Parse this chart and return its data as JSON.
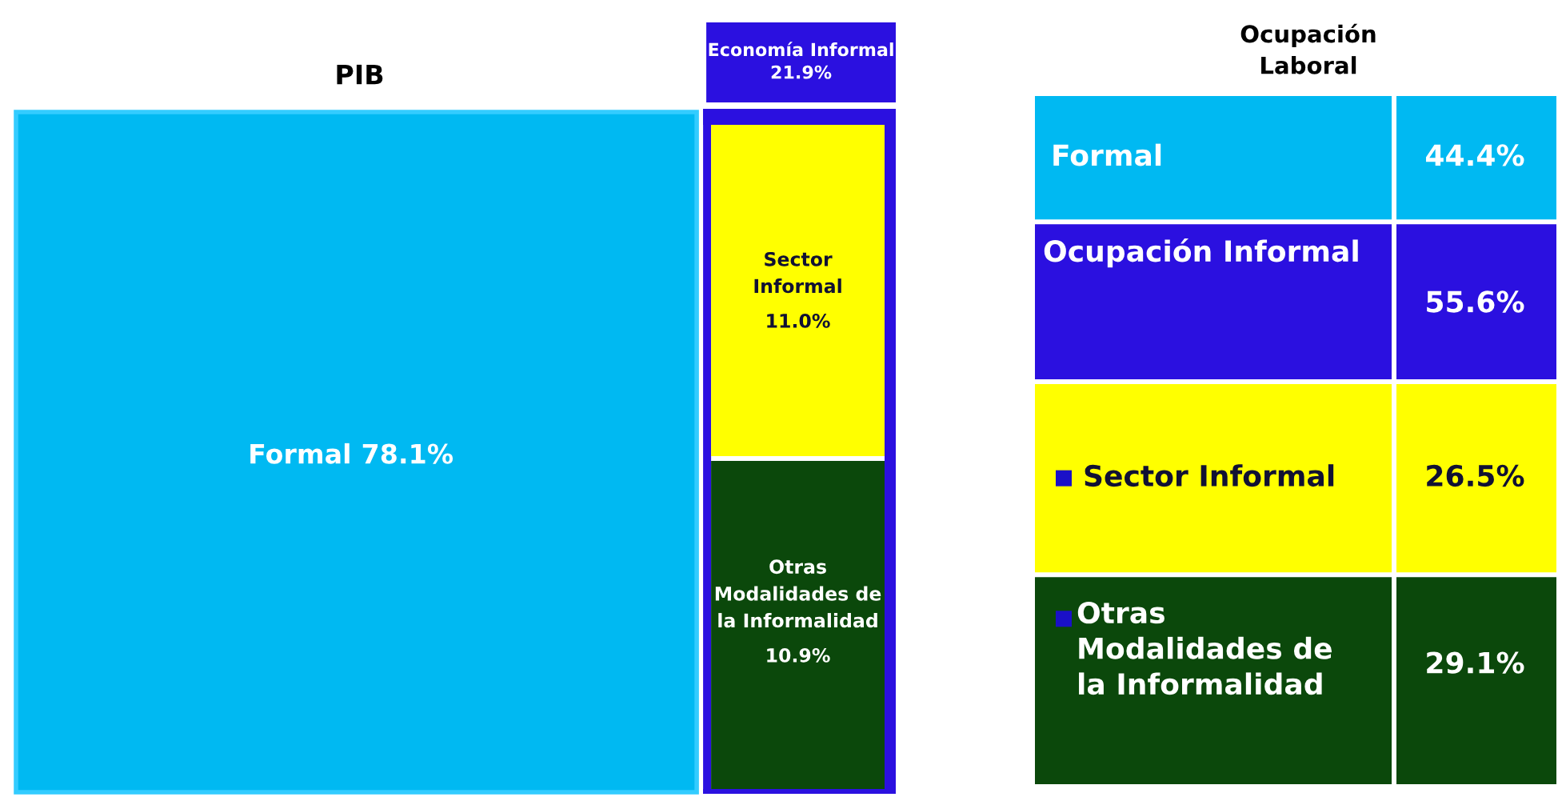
{
  "chart_data": [
    {
      "type": "other",
      "title": "PIB",
      "categories": [
        "Formal",
        "Sector\nInformal",
        "Otras\nModalidades de\nla Informalidad"
      ],
      "values": [
        78.1,
        11.0,
        10.9
      ],
      "value_labels": [
        "78.1%",
        "11.0%",
        "10.9%"
      ],
      "colors": [
        "#00b9f2",
        "#ffff00",
        "#0b480b"
      ],
      "annotations": [
        "Economía Informal\n21.9%"
      ],
      "color": "#2b10e0"
    },
    {
      "type": "other",
      "title": "Ocupación\nLaboral",
      "categories": [
        "Formal",
        "Ocupación Informal",
        "Sector Informal",
        "Otras\nModalidades de\nla Informalidad"
      ],
      "values": [
        44.4,
        55.6,
        26.5,
        29.1
      ],
      "value_labels": [
        "44.4%",
        "55.6%",
        "26.5%",
        "29.1%"
      ],
      "colors": [
        "#00b9f2",
        "#2b10e0",
        "#ffff00",
        "#0b480b"
      ]
    }
  ]
}
